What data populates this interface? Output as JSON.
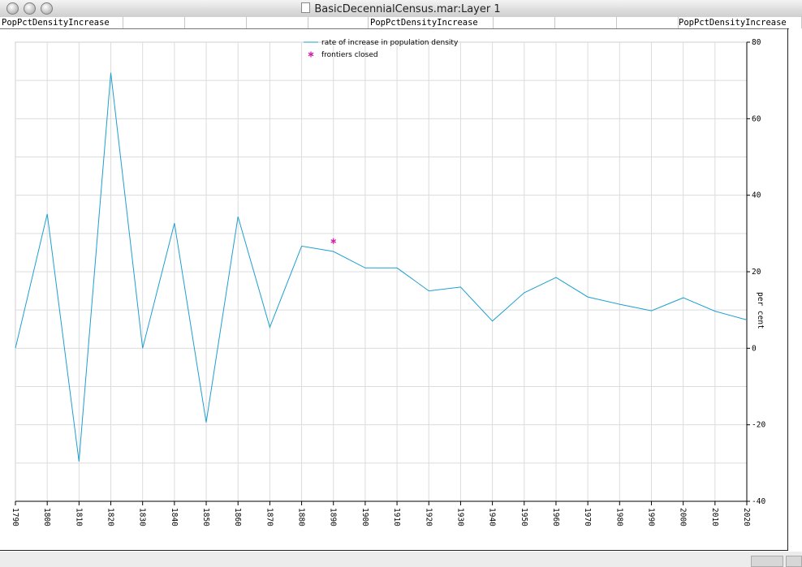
{
  "window": {
    "title": "BasicDecennialCensus.mar:Layer 1"
  },
  "header_cells": [
    "PopPctDensityIncrease",
    "",
    "",
    "",
    "PopPctDensityIncrease",
    "",
    "",
    "",
    "",
    "",
    "",
    "PopPctDensityIncrease"
  ],
  "chart_data": {
    "type": "line",
    "ylabel": "per cent",
    "ylim": [
      -40,
      80
    ],
    "yticks": [
      -40,
      -20,
      0,
      20,
      40,
      60,
      80
    ],
    "ytick_labels": [
      "-40",
      "-20",
      "0",
      "20",
      "40",
      "60",
      "80"
    ],
    "xlim": [
      1790,
      2020
    ],
    "x": [
      "1790",
      "1800",
      "1810",
      "1820",
      "1830",
      "1840",
      "1850",
      "1860",
      "1870",
      "1880",
      "1890",
      "1900",
      "1910",
      "1920",
      "1930",
      "1940",
      "1950",
      "1960",
      "1970",
      "1980",
      "1990",
      "2000",
      "2010",
      "2020"
    ],
    "grid": true,
    "legend_position": "top-center",
    "series": [
      {
        "name": "rate of increase in population density",
        "color": "#1e9fd0",
        "marker": "line",
        "x": [
          1790,
          1800,
          1810,
          1820,
          1830,
          1840,
          1850,
          1860,
          1870,
          1880,
          1890,
          1900,
          1910,
          1920,
          1930,
          1940,
          1950,
          1960,
          1970,
          1980,
          1990,
          2000,
          2010,
          2020
        ],
        "values": [
          0,
          35.1,
          -29.6,
          72,
          0,
          32.7,
          -19.4,
          34.4,
          5.5,
          26.7,
          25.3,
          21,
          21,
          15,
          16,
          7.1,
          14.5,
          18.5,
          13.4,
          11.5,
          9.8,
          13.2,
          9.7,
          7.4
        ]
      },
      {
        "name": "frontiers closed",
        "color": "#d020a8",
        "marker": "asterisk",
        "x": [
          1890
        ],
        "values": [
          28
        ]
      }
    ]
  }
}
